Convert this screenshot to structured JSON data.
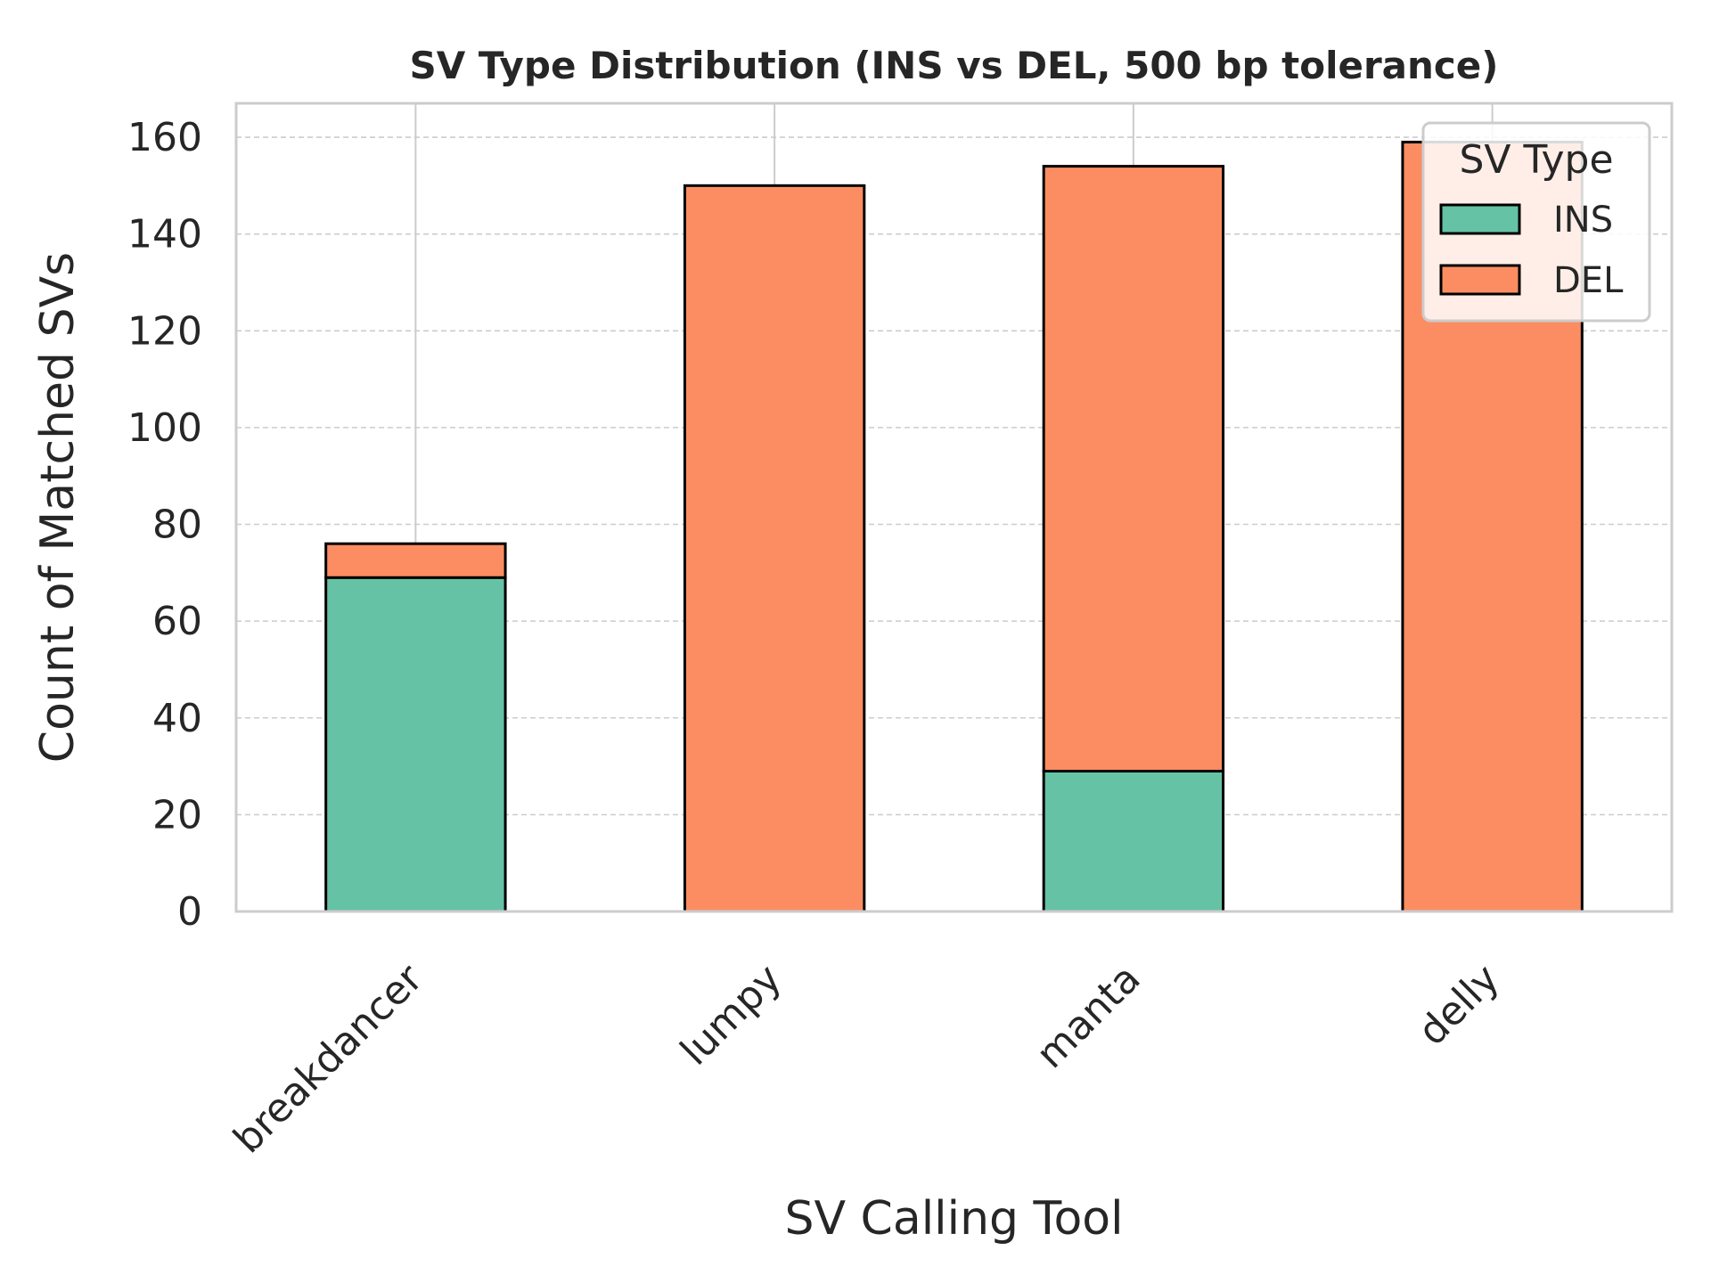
{
  "chart_data": {
    "type": "bar",
    "stacked": true,
    "title": "SV Type Distribution (INS vs DEL, 500 bp tolerance)",
    "xlabel": "SV Calling Tool",
    "ylabel": "Count of Matched SVs",
    "categories": [
      "breakdancer",
      "lumpy",
      "manta",
      "delly"
    ],
    "series": [
      {
        "name": "INS",
        "values": [
          69,
          0,
          29,
          0
        ],
        "color": "#66c2a5"
      },
      {
        "name": "DEL",
        "values": [
          7,
          150,
          125,
          159
        ],
        "color": "#fc8d62"
      }
    ],
    "ylim": [
      0,
      167
    ],
    "yticks": [
      0,
      20,
      40,
      60,
      80,
      100,
      120,
      140,
      160
    ],
    "grid": true,
    "legend": {
      "title": "SV Type",
      "position": "top-right"
    }
  }
}
